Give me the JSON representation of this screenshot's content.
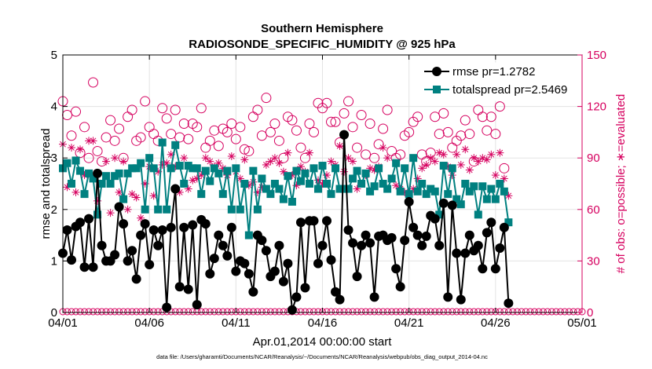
{
  "chart_data": {
    "type": "line",
    "title": "Southern Hemisphere",
    "subtitle": "RADIOSONDE_SPECIFIC_HUMIDITY @ 925 hPa",
    "xlabel": "Apr.01,2014 00:00:00 start",
    "ylabel": "rmse and totalspread",
    "y2label": "# of obs: o=possible; ∗=evaluated",
    "footnote": "data file: /Users/gharamti/Documents/NCAR/Reanalysis/~/Documents/NCAR/Reanalysis/webpub/obs_diag_output_2014-04.nc",
    "xlim": [
      0,
      30
    ],
    "ylim": [
      0,
      5
    ],
    "y2lim": [
      0,
      150
    ],
    "x_ticks": [
      0,
      5,
      10,
      15,
      20,
      25,
      30
    ],
    "x_tick_labels": [
      "04/01",
      "04/06",
      "04/11",
      "04/16",
      "04/21",
      "04/26",
      "05/01"
    ],
    "y_ticks": [
      0,
      1,
      2,
      3,
      4,
      5
    ],
    "y2_ticks": [
      0,
      30,
      60,
      90,
      120,
      150
    ],
    "grid": true,
    "legend_position": "top-right",
    "x_step_days": 0.25,
    "series": [
      {
        "name": "rmse  pr=1.2782",
        "axis": "left",
        "color": "#000000",
        "marker": "circle-filled",
        "values": [
          1.15,
          1.6,
          1.02,
          1.67,
          1.75,
          0.88,
          1.82,
          0.88,
          2.7,
          1.3,
          1.0,
          1.0,
          1.12,
          2.05,
          1.72,
          1.0,
          1.2,
          0.65,
          1.5,
          1.72,
          0.93,
          1.6,
          1.3,
          1.6,
          0.1,
          1.65,
          2.4,
          0.5,
          1.65,
          0.45,
          1.7,
          0.15,
          1.8,
          1.72,
          0.75,
          1.05,
          1.5,
          1.3,
          1.1,
          1.65,
          0.8,
          1.0,
          0.95,
          0.75,
          0.4,
          1.5,
          1.4,
          1.2,
          0.7,
          0.8,
          1.3,
          0.6,
          0.95,
          0.05,
          0.3,
          1.75,
          0.48,
          1.78,
          1.78,
          0.95,
          1.3,
          1.78,
          1.02,
          0.4,
          0.25,
          3.45,
          1.6,
          1.35,
          0.7,
          1.3,
          1.5,
          1.35,
          0.3,
          1.48,
          1.5,
          1.4,
          1.45,
          0.85,
          0.5,
          1.4,
          2.15,
          1.65,
          1.5,
          1.3,
          1.48,
          1.88,
          1.82,
          1.3,
          2.12,
          0.3,
          2.08,
          1.15,
          0.25,
          1.15,
          1.5,
          1.2,
          1.3,
          0.85,
          1.55,
          1.75,
          0.85,
          1.25,
          1.65,
          0.18
        ]
      },
      {
        "name": "totalspread  pr=2.5469",
        "axis": "left",
        "color": "#008080",
        "marker": "square-filled",
        "values": [
          2.8,
          2.9,
          2.5,
          2.95,
          2.75,
          2.3,
          2.7,
          2.6,
          1.9,
          2.5,
          2.65,
          2.5,
          2.65,
          2.7,
          2.2,
          2.7,
          2.8,
          2.8,
          2.9,
          2.0,
          3.0,
          2.8,
          2.0,
          3.3,
          2.0,
          2.8,
          3.25,
          2.85,
          2.5,
          2.85,
          2.8,
          2.8,
          2.3,
          2.75,
          2.55,
          2.8,
          2.7,
          2.3,
          2.75,
          2.0,
          2.8,
          2.0,
          2.5,
          1.5,
          2.75,
          2.0,
          2.6,
          2.4,
          2.3,
          2.5,
          2.4,
          2.2,
          2.65,
          2.15,
          2.75,
          2.55,
          2.7,
          2.5,
          2.8,
          2.4,
          2.85,
          2.5,
          2.3,
          2.8,
          2.4,
          2.4,
          2.4,
          2.6,
          2.75,
          2.5,
          2.7,
          2.35,
          2.45,
          2.8,
          2.5,
          2.4,
          2.6,
          2.9,
          2.35,
          2.8,
          2.3,
          3.0,
          2.35,
          2.5,
          2.3,
          2.4,
          2.35,
          1.9,
          2.85,
          2.3,
          2.8,
          2.2,
          2.1,
          2.5,
          2.35,
          2.45,
          1.9,
          2.45,
          2.2,
          2.4,
          2.2,
          2.5,
          2.35,
          1.75
        ]
      },
      {
        "name": "# of obs possible",
        "axis": "right",
        "color": "#d6005f",
        "marker": "circle-open",
        "values": [
          123,
          115,
          103,
          117,
          93,
          108,
          90,
          134,
          94,
          88,
          102,
          112,
          100,
          107,
          90,
          114,
          118,
          100,
          102,
          123,
          108,
          104,
          100,
          119,
          113,
          104,
          118,
          102,
          110,
          101,
          110,
          108,
          119,
          96,
          100,
          106,
          97,
          107,
          105,
          110,
          101,
          108,
          95,
          94,
          114,
          118,
          103,
          125,
          105,
          110,
          100,
          90,
          114,
          112,
          106,
          96,
          90,
          110,
          105,
          122,
          119,
          122,
          111,
          111,
          99,
          116,
          123,
          108,
          96,
          115,
          92,
          110,
          90,
          98,
          107,
          118,
          94,
          90,
          92,
          103,
          105,
          111,
          114,
          92,
          88,
          93,
          114,
          104,
          116,
          105,
          96,
          100,
          103,
          112,
          104,
          88,
          118,
          114,
          106,
          114,
          104,
          120,
          84
        ]
      },
      {
        "name": "# of obs evaluated",
        "axis": "right",
        "color": "#d6005f",
        "marker": "asterisk",
        "values": [
          98,
          73,
          96,
          70,
          95,
          80,
          100,
          100,
          65,
          75,
          88,
          58,
          90,
          70,
          88,
          60,
          69,
          67,
          55,
          75,
          85,
          68,
          82,
          86,
          87,
          92,
          85,
          70,
          90,
          72,
          77,
          78,
          80,
          90,
          88,
          85,
          87,
          84,
          80,
          91,
          82,
          78,
          89,
          74,
          76,
          70,
          73,
          86,
          88,
          90,
          87,
          82,
          93,
          80,
          74,
          85,
          82,
          93,
          84,
          77,
          75,
          80,
          88,
          86,
          97,
          82,
          90,
          88,
          72,
          75,
          80,
          84,
          83,
          85,
          96,
          90,
          78,
          74,
          72,
          70,
          65,
          72,
          78,
          84,
          86,
          90,
          88,
          93,
          92,
          85,
          80,
          92,
          86,
          95,
          83,
          90,
          88,
          90,
          89,
          92,
          80,
          93,
          78,
          68
        ]
      }
    ]
  }
}
